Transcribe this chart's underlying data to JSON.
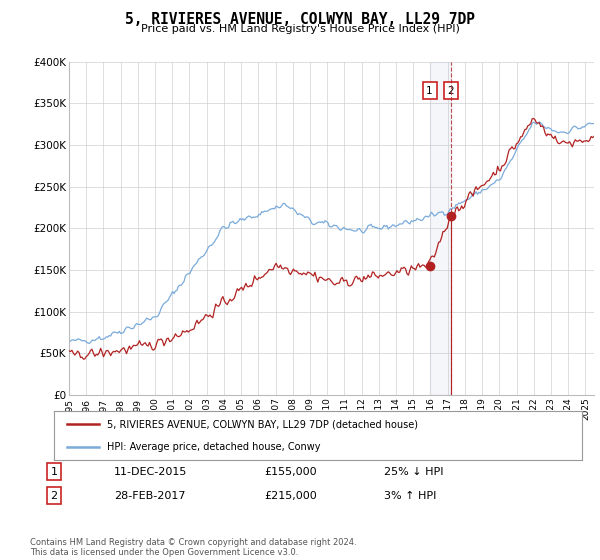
{
  "title": "5, RIVIERES AVENUE, COLWYN BAY, LL29 7DP",
  "subtitle": "Price paid vs. HM Land Registry's House Price Index (HPI)",
  "ylim": [
    0,
    400000
  ],
  "yticks": [
    0,
    50000,
    100000,
    150000,
    200000,
    250000,
    300000,
    350000,
    400000
  ],
  "ytick_labels": [
    "£0",
    "£50K",
    "£100K",
    "£150K",
    "£200K",
    "£250K",
    "£300K",
    "£350K",
    "£400K"
  ],
  "xlim_start": 1995.0,
  "xlim_end": 2025.5,
  "hpi_color": "#7aabdb",
  "price_color": "#b22222",
  "transaction1_date": 2015.95,
  "transaction1_price": 155000,
  "transaction1_label": "1",
  "transaction2_date": 2017.17,
  "transaction2_price": 215000,
  "transaction2_label": "2",
  "legend_entry1": "5, RIVIERES AVENUE, COLWYN BAY, LL29 7DP (detached house)",
  "legend_entry2": "HPI: Average price, detached house, Conwy",
  "table_row1_num": "1",
  "table_row1_date": "11-DEC-2015",
  "table_row1_price": "£155,000",
  "table_row1_hpi": "25% ↓ HPI",
  "table_row2_num": "2",
  "table_row2_date": "28-FEB-2017",
  "table_row2_price": "£215,000",
  "table_row2_hpi": "3% ↑ HPI",
  "footer": "Contains HM Land Registry data © Crown copyright and database right 2024.\nThis data is licensed under the Open Government Licence v3.0.",
  "background_color": "#ffffff"
}
